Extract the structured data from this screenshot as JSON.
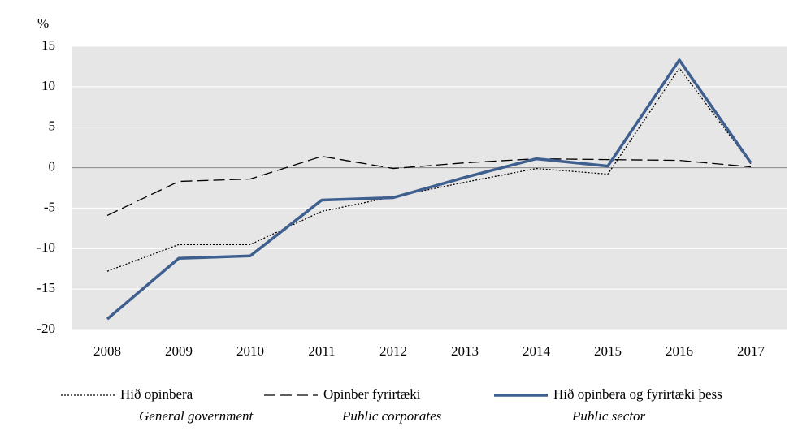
{
  "chart_data": {
    "type": "line",
    "y_label": "%",
    "categories": [
      "2008",
      "2009",
      "2010",
      "2011",
      "2012",
      "2013",
      "2014",
      "2015",
      "2016",
      "2017"
    ],
    "series": [
      {
        "name": "Hið opinbera",
        "name_en": "General government",
        "color": "#000000",
        "dash": "dotted",
        "values": [
          -12.8,
          -9.5,
          -9.5,
          -5.4,
          -3.6,
          -1.8,
          -0.1,
          -0.8,
          12.3,
          0.5
        ]
      },
      {
        "name": "Opinber fyrirtæki",
        "name_en": "Public corporates",
        "color": "#000000",
        "dash": "dashed",
        "values": [
          -5.9,
          -1.7,
          -1.4,
          1.4,
          -0.1,
          0.6,
          1.1,
          1.0,
          0.9,
          0.1
        ]
      },
      {
        "name": "Hið opinbera og fyrirtæki þess",
        "name_en": "Public sector",
        "color": "#3f5f8f",
        "dash": "solid",
        "values": [
          -18.7,
          -11.2,
          -10.9,
          -4.0,
          -3.7,
          -1.2,
          1.1,
          0.2,
          13.3,
          0.6
        ]
      }
    ],
    "ylim": [
      -20,
      15
    ],
    "yticks": [
      -20,
      -15,
      -10,
      -5,
      0,
      5,
      10,
      15
    ],
    "grid": true
  }
}
